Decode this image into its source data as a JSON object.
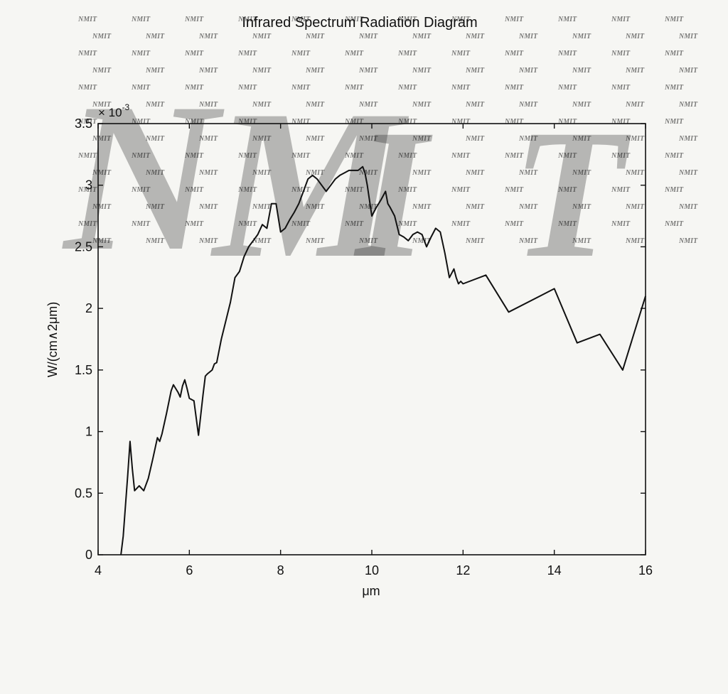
{
  "chart_data": {
    "type": "line",
    "title": "Infrared Spectrum Radiation Diagram",
    "xlabel": "μm",
    "ylabel": "W/(cm∧2μm)",
    "y_multiplier": "× 10",
    "y_multiplier_exponent": "-3",
    "xlim": [
      4,
      16
    ],
    "ylim": [
      0,
      3.5
    ],
    "x_ticks": [
      4,
      6,
      8,
      10,
      12,
      14,
      16
    ],
    "x_tick_labels": [
      "4",
      "6",
      "8",
      "10",
      "12",
      "14",
      "16"
    ],
    "y_ticks": [
      0,
      0.5,
      1,
      1.5,
      2,
      2.5,
      3,
      3.5
    ],
    "y_tick_labels": [
      "0",
      "0.5",
      "1",
      "1.5",
      "2",
      "2.5",
      "3",
      "3.5"
    ],
    "grid": false,
    "series": [
      {
        "color": "#111111",
        "x": [
          4.5,
          4.55,
          4.6,
          4.65,
          4.7,
          4.75,
          4.8,
          4.9,
          5.0,
          5.1,
          5.2,
          5.3,
          5.35,
          5.4,
          5.5,
          5.6,
          5.65,
          5.7,
          5.75,
          5.8,
          5.85,
          5.9,
          5.95,
          6.0,
          6.1,
          6.2,
          6.3,
          6.35,
          6.4,
          6.5,
          6.55,
          6.6,
          6.7,
          6.8,
          6.9,
          7.0,
          7.1,
          7.2,
          7.3,
          7.4,
          7.5,
          7.6,
          7.7,
          7.75,
          7.8,
          7.9,
          8.0,
          8.1,
          8.2,
          8.3,
          8.4,
          8.5,
          8.6,
          8.7,
          8.8,
          8.9,
          9.0,
          9.1,
          9.2,
          9.3,
          9.4,
          9.5,
          9.6,
          9.7,
          9.8,
          9.85,
          9.9,
          10.0,
          10.1,
          10.2,
          10.3,
          10.35,
          10.4,
          10.5,
          10.6,
          10.7,
          10.8,
          10.9,
          11.0,
          11.1,
          11.2,
          11.3,
          11.4,
          11.5,
          11.6,
          11.65,
          11.7,
          11.8,
          11.85,
          11.9,
          11.95,
          12.0,
          12.5,
          13.0,
          14.0,
          14.5,
          15.0,
          15.5,
          16.0
        ],
        "y": [
          0.0,
          0.15,
          0.4,
          0.65,
          0.92,
          0.7,
          0.52,
          0.56,
          0.52,
          0.62,
          0.78,
          0.95,
          0.92,
          0.98,
          1.15,
          1.33,
          1.38,
          1.35,
          1.32,
          1.28,
          1.37,
          1.42,
          1.35,
          1.27,
          1.25,
          0.97,
          1.3,
          1.45,
          1.47,
          1.5,
          1.55,
          1.56,
          1.75,
          1.9,
          2.05,
          2.25,
          2.3,
          2.42,
          2.5,
          2.55,
          2.6,
          2.68,
          2.65,
          2.75,
          2.85,
          2.85,
          2.62,
          2.65,
          2.72,
          2.78,
          2.85,
          2.95,
          3.05,
          3.08,
          3.05,
          3.0,
          2.95,
          3.0,
          3.05,
          3.08,
          3.1,
          3.12,
          3.12,
          3.12,
          3.15,
          3.1,
          3.0,
          2.75,
          2.82,
          2.88,
          2.95,
          2.85,
          2.82,
          2.75,
          2.6,
          2.58,
          2.55,
          2.6,
          2.62,
          2.6,
          2.5,
          2.58,
          2.65,
          2.62,
          2.45,
          2.35,
          2.25,
          2.32,
          2.25,
          2.2,
          2.22,
          2.2,
          2.27,
          1.97,
          2.16,
          1.72,
          1.79,
          1.5,
          2.1
        ]
      }
    ]
  },
  "watermark": {
    "text": "NMIT",
    "color": "#9fc7d9"
  }
}
